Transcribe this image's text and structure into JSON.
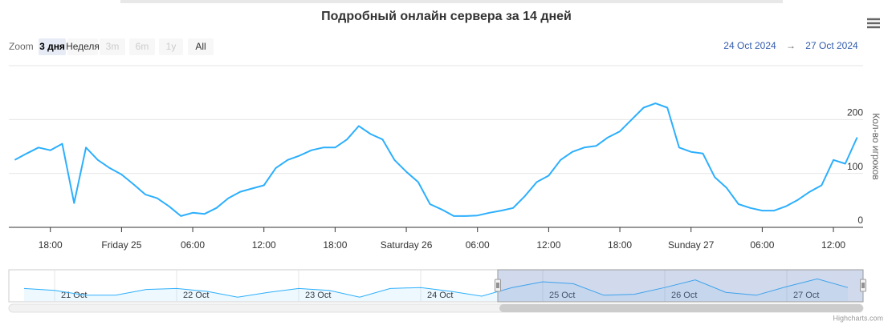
{
  "chart_data": {
    "type": "line",
    "title": "Подробный онлайн сервера за 14 дней",
    "range_selector": {
      "label": "Zoom",
      "buttons": [
        "3 дня",
        "Неделя",
        "3m",
        "6m",
        "1y",
        "All"
      ],
      "selected": 0,
      "disabled": [
        2,
        3,
        4
      ]
    },
    "date_from": "24 Oct 2024",
    "date_arrow": "→",
    "date_to": "27 Oct 2024",
    "y_axis_title": "Кол-во игроков",
    "ylim": [
      0,
      300
    ],
    "yticks": [
      0,
      100,
      200
    ],
    "grid": true,
    "color": "#2caffe",
    "categories": [
      null,
      null,
      null,
      "18:00",
      null,
      null,
      null,
      null,
      null,
      "Friday 25",
      null,
      null,
      null,
      null,
      null,
      "06:00",
      null,
      null,
      null,
      null,
      null,
      "12:00",
      null,
      null,
      null,
      null,
      null,
      "18:00",
      null,
      null,
      null,
      null,
      null,
      "Saturday 26",
      null,
      null,
      null,
      null,
      null,
      "06:00",
      null,
      null,
      null,
      null,
      null,
      "12:00",
      null,
      null,
      null,
      null,
      null,
      "18:00",
      null,
      null,
      null,
      null,
      null,
      "Sunday 27",
      null,
      null,
      null,
      null,
      null,
      "06:00",
      null,
      null,
      null,
      null,
      null,
      "12:00",
      null,
      null
    ],
    "values": [
      125,
      137,
      148,
      143,
      155,
      45,
      148,
      125,
      110,
      98,
      80,
      61,
      54,
      39,
      21,
      27,
      25,
      36,
      54,
      66,
      72,
      78,
      110,
      125,
      133,
      143,
      148,
      148,
      163,
      188,
      173,
      163,
      125,
      103,
      84,
      43,
      33,
      21,
      21,
      22,
      27,
      31,
      36,
      58,
      84,
      96,
      125,
      140,
      148,
      151,
      167,
      178,
      200,
      222,
      230,
      222,
      148,
      140,
      137,
      93,
      73,
      43,
      36,
      31,
      31,
      39,
      51,
      66,
      78,
      125,
      118,
      167
    ],
    "navigator": {
      "categories": [
        null,
        "21 Oct",
        null,
        null,
        null,
        "22 Oct",
        null,
        null,
        null,
        "23 Oct",
        null,
        null,
        null,
        "24 Oct",
        null,
        null,
        null,
        "25 Oct",
        null,
        null,
        null,
        "26 Oct",
        null,
        null,
        null,
        "27 Oct",
        null,
        null
      ],
      "values": [
        130,
        110,
        60,
        60,
        120,
        130,
        100,
        40,
        90,
        130,
        110,
        40,
        130,
        140,
        100,
        50,
        140,
        200,
        180,
        60,
        70,
        140,
        220,
        90,
        60,
        150,
        230,
        140
      ]
    },
    "credits": "Highcharts.com"
  }
}
